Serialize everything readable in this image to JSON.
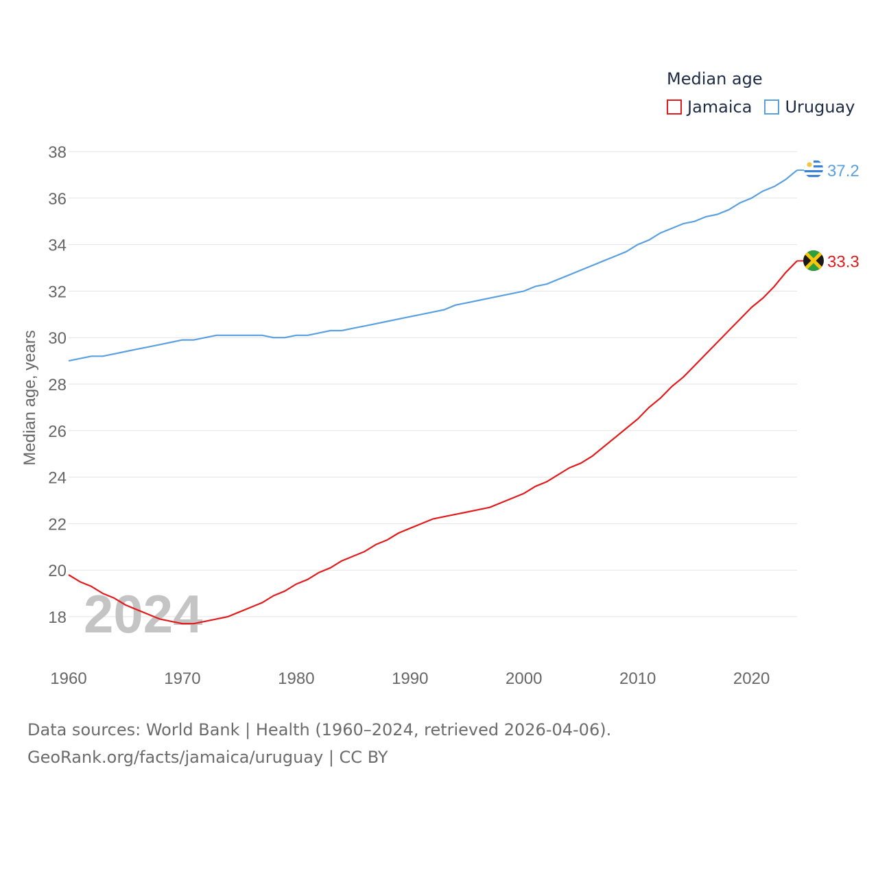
{
  "legend": {
    "title": "Median age",
    "items": [
      {
        "label": "Jamaica",
        "color": "#e31a1c"
      },
      {
        "label": "Uruguay",
        "color": "#5aa0e0"
      }
    ]
  },
  "source": {
    "line1": "Data sources: World Bank | Health (1960–2024, retrieved 2026-04-06).",
    "line2": "GeoRank.org/facts/jamaica/uruguay | CC BY"
  },
  "chart_data": {
    "type": "line",
    "title": "Median age",
    "xlabel": "",
    "ylabel": "Median age, years",
    "year_watermark": "2024",
    "xlim": [
      1960,
      2024
    ],
    "ylim": [
      17,
      38
    ],
    "xticks": [
      1960,
      1970,
      1980,
      1990,
      2000,
      2010,
      2020
    ],
    "yticks": [
      18,
      20,
      22,
      24,
      26,
      28,
      30,
      32,
      34,
      36,
      38
    ],
    "grid": true,
    "legend_position": "top-right",
    "x": [
      1960,
      1961,
      1962,
      1963,
      1964,
      1965,
      1966,
      1967,
      1968,
      1969,
      1970,
      1971,
      1972,
      1973,
      1974,
      1975,
      1976,
      1977,
      1978,
      1979,
      1980,
      1981,
      1982,
      1983,
      1984,
      1985,
      1986,
      1987,
      1988,
      1989,
      1990,
      1991,
      1992,
      1993,
      1994,
      1995,
      1996,
      1997,
      1998,
      1999,
      2000,
      2001,
      2002,
      2003,
      2004,
      2005,
      2006,
      2007,
      2008,
      2009,
      2010,
      2011,
      2012,
      2013,
      2014,
      2015,
      2016,
      2017,
      2018,
      2019,
      2020,
      2021,
      2022,
      2023,
      2024
    ],
    "series": [
      {
        "name": "Jamaica",
        "color": "#e31a1c",
        "end_label": "33.3",
        "values": [
          19.8,
          19.5,
          19.3,
          19.0,
          18.8,
          18.5,
          18.3,
          18.1,
          17.9,
          17.8,
          17.7,
          17.7,
          17.8,
          17.9,
          18.0,
          18.2,
          18.4,
          18.6,
          18.9,
          19.1,
          19.4,
          19.6,
          19.9,
          20.1,
          20.4,
          20.6,
          20.8,
          21.1,
          21.3,
          21.6,
          21.8,
          22.0,
          22.2,
          22.3,
          22.4,
          22.5,
          22.6,
          22.7,
          22.9,
          23.1,
          23.3,
          23.6,
          23.8,
          24.1,
          24.4,
          24.6,
          24.9,
          25.3,
          25.7,
          26.1,
          26.5,
          27.0,
          27.4,
          27.9,
          28.3,
          28.8,
          29.3,
          29.8,
          30.3,
          30.8,
          31.3,
          31.7,
          32.2,
          32.8,
          33.3
        ]
      },
      {
        "name": "Uruguay",
        "color": "#5aa0e0",
        "end_label": "37.2",
        "values": [
          29.0,
          29.1,
          29.2,
          29.2,
          29.3,
          29.4,
          29.5,
          29.6,
          29.7,
          29.8,
          29.9,
          29.9,
          30.0,
          30.1,
          30.1,
          30.1,
          30.1,
          30.1,
          30.0,
          30.0,
          30.1,
          30.1,
          30.2,
          30.3,
          30.3,
          30.4,
          30.5,
          30.6,
          30.7,
          30.8,
          30.9,
          31.0,
          31.1,
          31.2,
          31.4,
          31.5,
          31.6,
          31.7,
          31.8,
          31.9,
          32.0,
          32.2,
          32.3,
          32.5,
          32.7,
          32.9,
          33.1,
          33.3,
          33.5,
          33.7,
          34.0,
          34.2,
          34.5,
          34.7,
          34.9,
          35.0,
          35.2,
          35.3,
          35.5,
          35.8,
          36.0,
          36.3,
          36.5,
          36.8,
          37.2
        ]
      }
    ]
  }
}
